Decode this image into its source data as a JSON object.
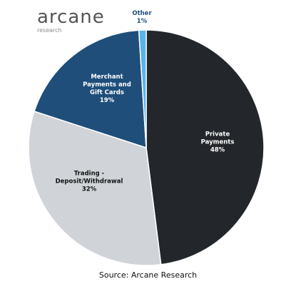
{
  "logo": {
    "name": "arcane",
    "subtitle": "research"
  },
  "chart_data": {
    "type": "pie",
    "categories": [
      "Private Payments",
      "Trading - Deposit/Withdrawal",
      "Merchant Payments and Gift Cards",
      "Other"
    ],
    "values": [
      48,
      32,
      19,
      1
    ],
    "value_labels": [
      "48%",
      "32%",
      "19%",
      "1%"
    ],
    "colors": [
      "#23262b",
      "#d0d4d9",
      "#1f4e7a",
      "#5ab3e8"
    ],
    "source": "Source: Arcane Research"
  }
}
